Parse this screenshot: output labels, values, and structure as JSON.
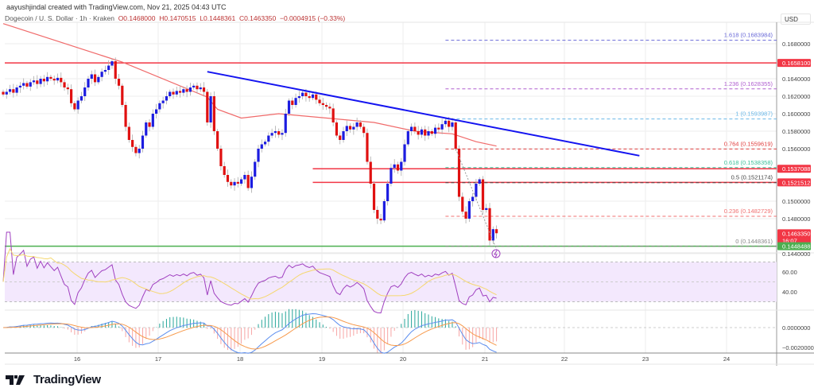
{
  "credit": "aayushjindal created with TradingView.com, Nov 21, 2025 04:43 UTC",
  "legend": {
    "symbol": "Dogecoin / U. S. Dollar · 1h · Kraken",
    "open": "O0.1468000",
    "high": "H0.1470515",
    "low": "L0.1448361",
    "close": "C0.1463350",
    "change": "−0.0004915 (−0.33%)"
  },
  "currency": "USD",
  "colors": {
    "up": "#1c1ce0",
    "down": "#e01010",
    "ma": "#f06a6a",
    "trend": "#1414f0",
    "resistance": "#f23645",
    "support": "#4caf50",
    "rsi": "#a040c0",
    "rsi_ma": "#f5d76e",
    "macd": "#5b8def",
    "signal": "#f79a4c"
  },
  "price_axis": [
    "0.1680000",
    "0.1640000",
    "0.1620000",
    "0.1600000",
    "0.1580000",
    "0.1560000",
    "0.1500000",
    "0.1480000",
    "0.1440000"
  ],
  "price_axis_values": [
    0.168,
    0.164,
    0.162,
    0.16,
    0.158,
    0.156,
    0.15,
    0.148,
    0.144
  ],
  "badges": [
    {
      "label": "0.1658100",
      "price": 0.16581,
      "color": "#f23645"
    },
    {
      "label": "0.1537088",
      "price": 0.1537088,
      "color": "#f23645"
    },
    {
      "label": "0.1521512",
      "price": 0.1521512,
      "color": "#f23645"
    },
    {
      "label": "0.1463350",
      "sub": "16:07",
      "price": 0.146335,
      "color": "#f23645"
    },
    {
      "label": "0.1448488",
      "price": 0.1448488,
      "color": "#4caf50"
    }
  ],
  "fib": [
    {
      "label": "1.618 (0.1683984)",
      "price": 0.1683984,
      "color": "#6a6ad8"
    },
    {
      "label": "1.236 (0.1628355)",
      "price": 0.1628355,
      "color": "#b060d0"
    },
    {
      "label": "1 (0.1593987)",
      "price": 0.1593987,
      "color": "#6ab8e8"
    },
    {
      "label": "0.764 (0.1559619)",
      "price": 0.1559619,
      "color": "#e04040"
    },
    {
      "label": "0.618 (0.1538358)",
      "price": 0.1538358,
      "color": "#3cc09a"
    },
    {
      "label": "0.5 (0.1521174)",
      "price": 0.1521174,
      "color": "#444444"
    },
    {
      "label": "0.236 (0.1482729)",
      "price": 0.1482729,
      "color": "#f07070"
    },
    {
      "label": "0 (0.1448361)",
      "price": 0.1448361,
      "color": "#888888"
    }
  ],
  "time_axis": [
    "16",
    "17",
    "18",
    "19",
    "20",
    "21",
    "22",
    "23",
    "24"
  ],
  "rsi_axis": [
    "60.00",
    "40.00"
  ],
  "macd_axis": [
    "0.0000000",
    "−0.0020000"
  ],
  "brand": "TradingView",
  "chart_data": {
    "type": "candlestick",
    "title": "Dogecoin / U. S. Dollar · 1h · Kraken",
    "ylabel": "USD",
    "ylim": [
      0.1435,
      0.1702
    ],
    "first_candle": "Nov 15 02:00",
    "interval": "1h",
    "closes": [
      0.1622,
      0.1625,
      0.1628,
      0.1624,
      0.163,
      0.1632,
      0.1635,
      0.1631,
      0.1636,
      0.1638,
      0.1634,
      0.164,
      0.1637,
      0.1642,
      0.164,
      0.1638,
      0.1641,
      0.1636,
      0.163,
      0.1628,
      0.1612,
      0.1605,
      0.1615,
      0.162,
      0.163,
      0.164,
      0.1645,
      0.1636,
      0.1642,
      0.1648,
      0.165,
      0.1655,
      0.166,
      0.164,
      0.1632,
      0.161,
      0.1585,
      0.157,
      0.1562,
      0.1555,
      0.156,
      0.1575,
      0.159,
      0.1585,
      0.16,
      0.1605,
      0.1612,
      0.1615,
      0.162,
      0.1625,
      0.1622,
      0.1626,
      0.1624,
      0.1628,
      0.1625,
      0.163,
      0.1632,
      0.1628,
      0.163,
      0.1625,
      0.159,
      0.162,
      0.158,
      0.156,
      0.154,
      0.153,
      0.1522,
      0.1518,
      0.1522,
      0.152,
      0.1525,
      0.153,
      0.1515,
      0.1528,
      0.1545,
      0.156,
      0.1565,
      0.1568,
      0.1575,
      0.1578,
      0.158,
      0.1576,
      0.1578,
      0.16,
      0.1615,
      0.161,
      0.1618,
      0.162,
      0.1624,
      0.162,
      0.1618,
      0.1622,
      0.1616,
      0.1612,
      0.161,
      0.1608,
      0.1606,
      0.159,
      0.1575,
      0.157,
      0.158,
      0.1586,
      0.1582,
      0.1585,
      0.159,
      0.1585,
      0.1578,
      0.1545,
      0.152,
      0.149,
      0.148,
      0.1478,
      0.15,
      0.152,
      0.1538,
      0.1542,
      0.1535,
      0.1545,
      0.1565,
      0.158,
      0.1585,
      0.158,
      0.1576,
      0.1582,
      0.1575,
      0.158,
      0.1577,
      0.1584,
      0.1582,
      0.1588,
      0.1592,
      0.1585,
      0.159,
      0.156,
      0.1505,
      0.1488,
      0.148,
      0.15,
      0.1505,
      0.152,
      0.1525,
      0.149,
      0.1492,
      0.1455,
      0.1468,
      0.146335
    ],
    "moving_average": [
      [
        0,
        0.1703
      ],
      [
        35,
        0.1659
      ],
      [
        60,
        0.1619
      ],
      [
        63,
        0.1605
      ],
      [
        70,
        0.1595
      ],
      [
        81,
        0.16
      ],
      [
        98,
        0.1594
      ],
      [
        109,
        0.159
      ],
      [
        121,
        0.158
      ],
      [
        132,
        0.1577
      ],
      [
        139,
        0.1568
      ],
      [
        145,
        0.1563
      ]
    ],
    "trendline": [
      [
        60,
        0.1648
      ],
      [
        187,
        0.1552
      ]
    ],
    "resistance_lines": [
      {
        "from": 91,
        "price": 0.1537088
      },
      {
        "from": 91,
        "price": 0.1521512
      }
    ],
    "horizontal_lines": [
      {
        "price": 0.16581,
        "color": "#f23645"
      },
      {
        "price": 0.1448488,
        "color": "#4caf50"
      }
    ],
    "fib_start_index": 130,
    "rsi_band": [
      30,
      70
    ],
    "macd_range": [
      -0.0025,
      0.0012
    ]
  }
}
